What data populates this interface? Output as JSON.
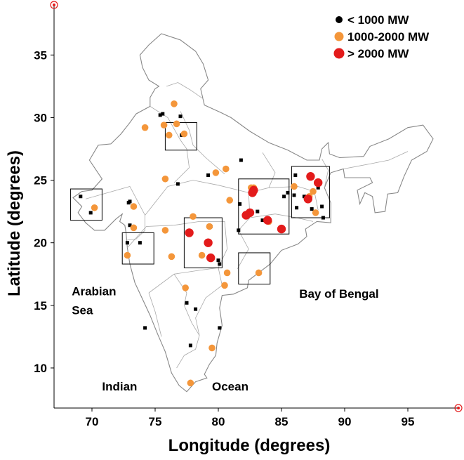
{
  "map": {
    "x_axis": {
      "label": "Longitude (degrees)",
      "ticks": [
        70,
        75,
        80,
        85,
        90,
        95
      ],
      "range": [
        67,
        99
      ]
    },
    "y_axis": {
      "label": "Latitude (degrees)",
      "ticks": [
        10,
        15,
        20,
        25,
        30,
        35
      ],
      "range": [
        6.8,
        39
      ]
    },
    "legend": {
      "placement": "top-right",
      "items": [
        {
          "label": "< 1000 MW",
          "color": "#000000",
          "class": "small"
        },
        {
          "label": "1000-2000 MW",
          "color": "#f4963a",
          "class": "medium"
        },
        {
          "label": "> 2000 MW",
          "color": "#e31b1b",
          "class": "large"
        }
      ]
    },
    "water_labels": [
      {
        "text": "Arabian",
        "lon": 68.4,
        "lat": 15.8
      },
      {
        "text": "Sea",
        "lon": 68.4,
        "lat": 14.3
      },
      {
        "text": "Bay of Bengal",
        "lon": 86.4,
        "lat": 15.6
      },
      {
        "text": "Indian",
        "lon": 70.8,
        "lat": 8.2
      },
      {
        "text": "Ocean",
        "lon": 79.5,
        "lat": 8.2
      }
    ],
    "corner_markers": [
      {
        "lon": 67,
        "lat": 39
      },
      {
        "lon": 99,
        "lat": 6.8
      }
    ],
    "boxes": [
      {
        "lon": [
          75.8,
          78.3
        ],
        "lat": [
          27.4,
          29.6
        ]
      },
      {
        "lon": [
          68.3,
          70.8
        ],
        "lat": [
          21.8,
          24.3
        ]
      },
      {
        "lon": [
          72.4,
          74.9
        ],
        "lat": [
          18.3,
          20.8
        ]
      },
      {
        "lon": [
          77.3,
          80.3
        ],
        "lat": [
          18.0,
          22.0
        ]
      },
      {
        "lon": [
          81.6,
          85.6
        ],
        "lat": [
          20.7,
          25.1
        ]
      },
      {
        "lon": [
          81.6,
          84.1
        ],
        "lat": [
          16.7,
          19.2
        ]
      },
      {
        "lon": [
          85.8,
          88.8
        ],
        "lat": [
          22.0,
          26.1
        ]
      }
    ],
    "plants": {
      "small": [
        [
          69.1,
          23.7
        ],
        [
          69.9,
          22.4
        ],
        [
          72.9,
          23.2
        ],
        [
          73.0,
          23.3
        ],
        [
          73.0,
          21.4
        ],
        [
          72.8,
          20.0
        ],
        [
          73.8,
          20.0
        ],
        [
          75.4,
          30.2
        ],
        [
          75.6,
          30.3
        ],
        [
          77.0,
          30.1
        ],
        [
          77.1,
          28.6
        ],
        [
          76.8,
          24.7
        ],
        [
          79.2,
          25.4
        ],
        [
          81.8,
          26.6
        ],
        [
          81.7,
          23.1
        ],
        [
          81.6,
          21.0
        ],
        [
          83.1,
          22.5
        ],
        [
          83.5,
          21.8
        ],
        [
          84.0,
          21.6
        ],
        [
          85.1,
          21.0
        ],
        [
          85.2,
          23.7
        ],
        [
          86.0,
          23.8
        ],
        [
          86.1,
          25.4
        ],
        [
          86.2,
          22.8
        ],
        [
          86.8,
          23.7
        ],
        [
          87.9,
          24.4
        ],
        [
          88.2,
          22.9
        ],
        [
          88.3,
          22.0
        ],
        [
          80.0,
          18.6
        ],
        [
          80.1,
          18.3
        ],
        [
          77.5,
          15.2
        ],
        [
          78.2,
          14.7
        ],
        [
          74.2,
          13.2
        ],
        [
          77.8,
          11.8
        ],
        [
          80.1,
          13.2
        ],
        [
          79.4,
          21.3
        ],
        [
          85.5,
          24.0
        ],
        [
          87.4,
          22.7
        ]
      ],
      "medium": [
        [
          70.2,
          22.8
        ],
        [
          73.3,
          22.9
        ],
        [
          73.3,
          21.2
        ],
        [
          72.8,
          19.0
        ],
        [
          74.2,
          29.2
        ],
        [
          75.7,
          29.4
        ],
        [
          76.1,
          28.6
        ],
        [
          76.5,
          31.1
        ],
        [
          76.7,
          29.5
        ],
        [
          77.3,
          28.7
        ],
        [
          75.8,
          25.1
        ],
        [
          80.6,
          25.9
        ],
        [
          79.8,
          25.6
        ],
        [
          80.9,
          23.4
        ],
        [
          82.6,
          24.4
        ],
        [
          82.8,
          24.4
        ],
        [
          84.0,
          21.7
        ],
        [
          86.0,
          24.5
        ],
        [
          87.5,
          24.1
        ],
        [
          87.7,
          22.4
        ],
        [
          78.0,
          22.1
        ],
        [
          79.3,
          21.3
        ],
        [
          75.8,
          21.0
        ],
        [
          76.3,
          18.9
        ],
        [
          78.7,
          19.0
        ],
        [
          77.4,
          16.4
        ],
        [
          80.5,
          16.6
        ],
        [
          80.7,
          17.6
        ],
        [
          83.2,
          17.6
        ],
        [
          79.5,
          11.6
        ],
        [
          77.8,
          8.8
        ],
        [
          87.2,
          23.7
        ]
      ],
      "large": [
        [
          77.7,
          20.8
        ],
        [
          79.2,
          20.0
        ],
        [
          79.4,
          18.8
        ],
        [
          82.2,
          22.2
        ],
        [
          82.5,
          22.4
        ],
        [
          82.8,
          24.2
        ],
        [
          83.9,
          21.8
        ],
        [
          85.0,
          21.1
        ],
        [
          87.1,
          23.5
        ],
        [
          87.3,
          25.3
        ],
        [
          87.9,
          24.8
        ],
        [
          82.7,
          24.0
        ]
      ]
    }
  }
}
